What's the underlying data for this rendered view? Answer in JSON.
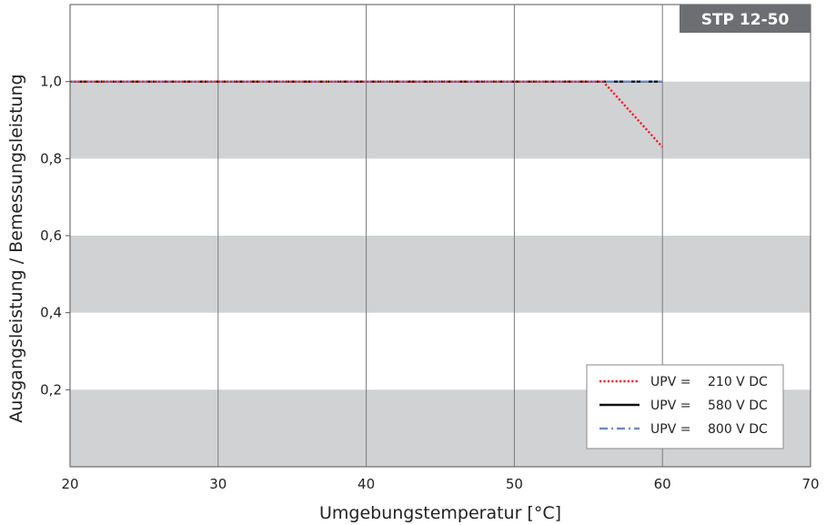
{
  "chart_data": {
    "type": "line",
    "title": "",
    "badge": "STP 12-50",
    "xlabel": "Umgebungstemperatur [°C]",
    "ylabel": "Ausgangsleistung / Bemessungsleistung",
    "xlim": [
      20,
      70
    ],
    "ylim": [
      0,
      1.2
    ],
    "x_ticks": [
      20,
      30,
      40,
      50,
      60,
      70
    ],
    "x_tick_labels": [
      "20",
      "30",
      "40",
      "50",
      "60",
      "70"
    ],
    "y_ticks": [
      0.2,
      0.4,
      0.6,
      0.8,
      1.0
    ],
    "y_tick_labels": [
      "0,2",
      "0,4",
      "0,6",
      "0,8",
      "1,0"
    ],
    "bands": [
      [
        0,
        0.2
      ],
      [
        0.4,
        0.6
      ],
      [
        0.8,
        1.0
      ]
    ],
    "grid": "vertical",
    "legend_position": "bottom-right",
    "series": [
      {
        "name": "UPV =   210 V DC",
        "label_prefix": "UPV =",
        "label_value": "210 V DC",
        "style": "dotted",
        "color": "#e8202a",
        "x": [
          20,
          56,
          60
        ],
        "y": [
          1.0,
          1.0,
          0.83
        ]
      },
      {
        "name": "UPV =   580 V DC",
        "label_prefix": "UPV =",
        "label_value": "580 V DC",
        "style": "solid",
        "color": "#111111",
        "x": [
          20,
          60
        ],
        "y": [
          1.0,
          1.0
        ]
      },
      {
        "name": "UPV =   800 V DC",
        "label_prefix": "UPV =",
        "label_value": "800 V DC",
        "style": "dashdot",
        "color": "#6b8cc4",
        "x": [
          20,
          60
        ],
        "y": [
          1.0,
          1.0
        ]
      }
    ],
    "colors": {
      "band": "#d1d2d4",
      "grid": "#7a7a7a",
      "frame": "#555555",
      "badge_bg": "#6d6e71"
    }
  }
}
